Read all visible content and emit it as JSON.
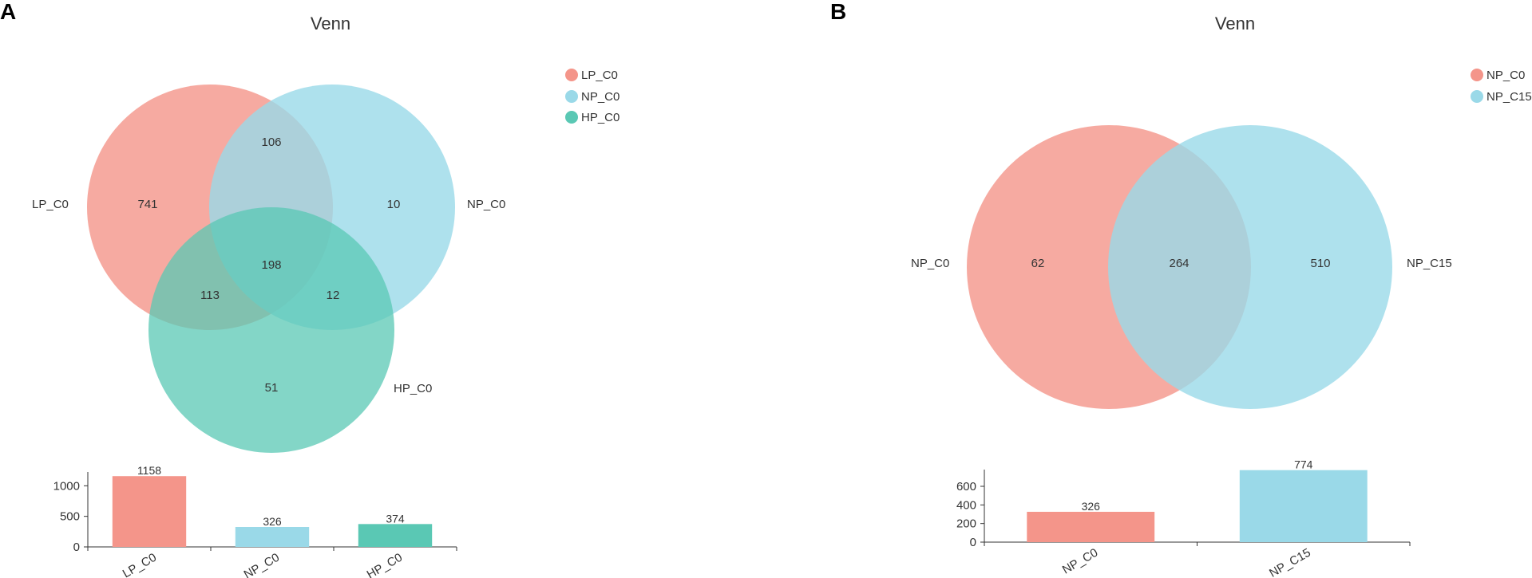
{
  "colors": {
    "red": "#f4958a",
    "blue": "#9ad9e8",
    "green": "#5ac8b4"
  },
  "chart_data": [
    {
      "type": "venn",
      "panel": "A",
      "title": "Venn",
      "legend_position": "top-right",
      "sets": [
        {
          "name": "LP_C0",
          "color": "#f4958a",
          "total": 1158
        },
        {
          "name": "NP_C0",
          "color": "#9ad9e8",
          "total": 326
        },
        {
          "name": "HP_C0",
          "color": "#5ac8b4",
          "total": 374
        }
      ],
      "regions": [
        {
          "sets": [
            "LP_C0"
          ],
          "value": "741"
        },
        {
          "sets": [
            "NP_C0"
          ],
          "value": "10"
        },
        {
          "sets": [
            "HP_C0"
          ],
          "value": "51"
        },
        {
          "sets": [
            "LP_C0",
            "NP_C0"
          ],
          "value": "106"
        },
        {
          "sets": [
            "LP_C0",
            "HP_C0"
          ],
          "value": "113"
        },
        {
          "sets": [
            "NP_C0",
            "HP_C0"
          ],
          "value": "12"
        },
        {
          "sets": [
            "LP_C0",
            "NP_C0",
            "HP_C0"
          ],
          "value": "198"
        }
      ],
      "bar": {
        "type": "bar",
        "categories": [
          "LP_C0",
          "NP_C0",
          "HP_C0"
        ],
        "values": [
          1158,
          326,
          374
        ],
        "yticks": [
          "0",
          "500",
          "1000"
        ],
        "ylim": [
          0,
          1200
        ]
      }
    },
    {
      "type": "venn",
      "panel": "B",
      "title": "Venn",
      "legend_position": "top-right",
      "sets": [
        {
          "name": "NP_C0",
          "color": "#f4958a",
          "total": 326
        },
        {
          "name": "NP_C15",
          "color": "#9ad9e8",
          "total": 774
        }
      ],
      "regions": [
        {
          "sets": [
            "NP_C0"
          ],
          "value": "62"
        },
        {
          "sets": [
            "NP_C0",
            "NP_C15"
          ],
          "value": "264"
        },
        {
          "sets": [
            "NP_C15"
          ],
          "value": "510"
        }
      ],
      "bar": {
        "type": "bar",
        "categories": [
          "NP_C0",
          "NP_C15"
        ],
        "values": [
          326,
          774
        ],
        "yticks": [
          "0",
          "200",
          "400",
          "600"
        ],
        "ylim": [
          0,
          780
        ]
      }
    }
  ]
}
